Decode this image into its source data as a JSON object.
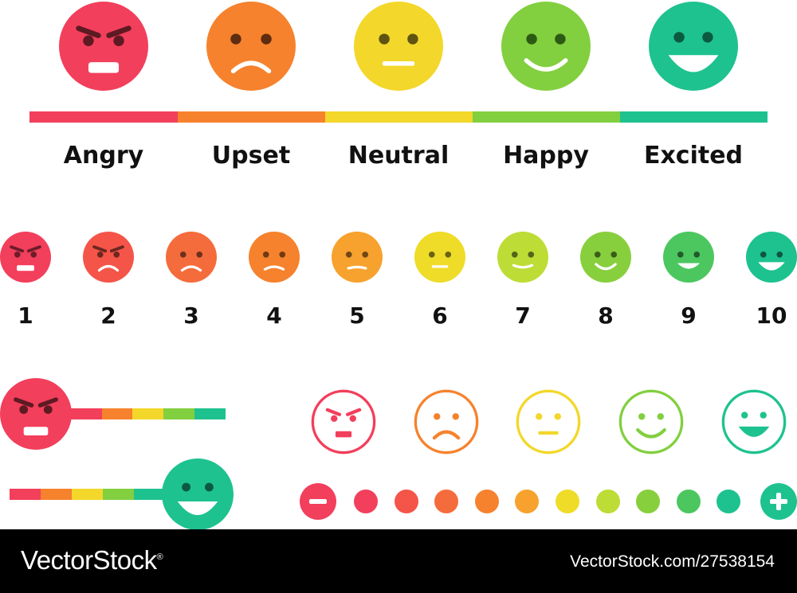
{
  "colors": {
    "angry": "#f23f5c",
    "upset": "#f6822d",
    "neutral": "#f3d72a",
    "happy": "#82cf3f",
    "excited": "#1ec28f",
    "scale": [
      "#f23f5c",
      "#f45548",
      "#f56c3c",
      "#f6822d",
      "#f7a22e",
      "#eedc29",
      "#bedc36",
      "#88cf3d",
      "#4cc75f",
      "#1ec28f"
    ]
  },
  "moods": [
    {
      "name": "angry-face",
      "label": "Angry"
    },
    {
      "name": "upset-face",
      "label": "Upset"
    },
    {
      "name": "neutral-face",
      "label": "Neutral"
    },
    {
      "name": "happy-face",
      "label": "Happy"
    },
    {
      "name": "excited-face",
      "label": "Excited"
    }
  ],
  "scale": {
    "labels": [
      "1",
      "2",
      "3",
      "4",
      "5",
      "6",
      "7",
      "8",
      "9",
      "10"
    ]
  },
  "stepper": {
    "minus_icon": "minus-icon",
    "plus_icon": "plus-icon",
    "steps": 10
  },
  "footer": {
    "brand": "VectorStock",
    "registered_mark": "®",
    "image_id": "VectorStock.com/27538154"
  }
}
